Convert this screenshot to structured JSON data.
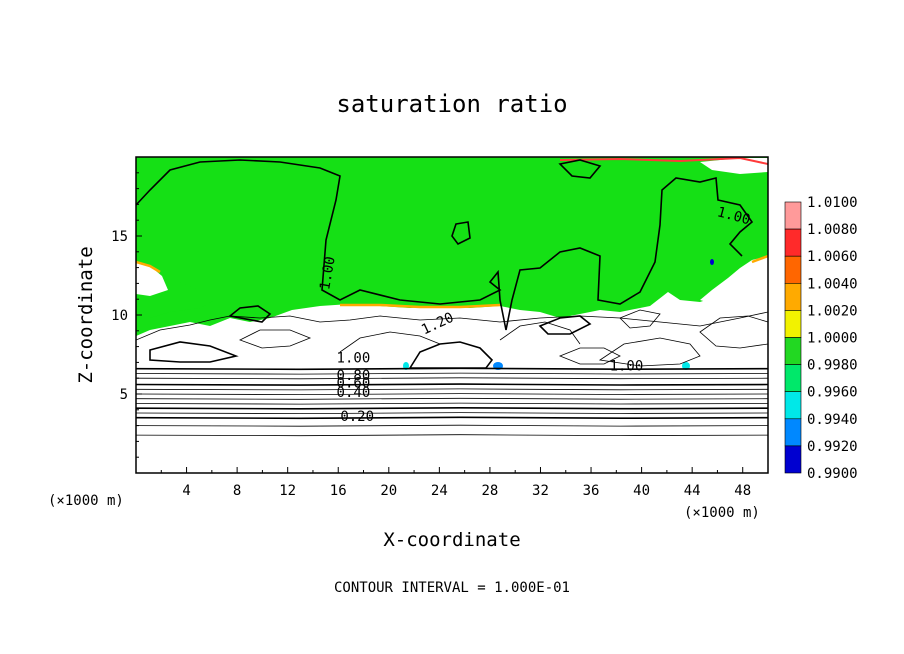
{
  "chart_data": {
    "type": "contour",
    "title": "saturation ratio",
    "xlabel": "X-coordinate",
    "ylabel": "Z-coordinate",
    "x_unit_left": "(×1000 m)",
    "x_unit_right": "(×1000 m)",
    "xlim": [
      0,
      50
    ],
    "ylim": [
      0,
      20
    ],
    "xticks": [
      "4",
      "8",
      "12",
      "16",
      "20",
      "24",
      "28",
      "32",
      "36",
      "40",
      "44",
      "48"
    ],
    "yticks": [
      "5",
      "10",
      "15"
    ],
    "footer": "CONTOUR INTERVAL = 1.000E-01",
    "contour_labels": [
      {
        "text": "1.00",
        "x": 15.5,
        "y": 12.6,
        "rotate": -80
      },
      {
        "text": "1.00",
        "x": 47.2,
        "y": 16.0,
        "rotate": 15
      },
      {
        "text": "1.20",
        "x": 24.0,
        "y": 9.2,
        "rotate": -25
      },
      {
        "text": "1.00",
        "x": 17.2,
        "y": 7.0,
        "rotate": 0
      },
      {
        "text": "0.80",
        "x": 17.2,
        "y": 5.9,
        "rotate": 0
      },
      {
        "text": "0.60",
        "x": 17.2,
        "y": 5.4,
        "rotate": 0
      },
      {
        "text": "0.40",
        "x": 17.2,
        "y": 4.8,
        "rotate": 0
      },
      {
        "text": "0.20",
        "x": 17.5,
        "y": 3.3,
        "rotate": 0
      },
      {
        "text": "1.00",
        "x": 38.8,
        "y": 6.5,
        "rotate": 0
      }
    ],
    "colorbar": {
      "levels": [
        "1.0100",
        "1.0080",
        "1.0060",
        "1.0040",
        "1.0020",
        "1.0000",
        "0.9980",
        "0.9960",
        "0.9940",
        "0.9920",
        "0.9900"
      ],
      "colors": [
        "#ff9a9a",
        "#ff2a2a",
        "#ff6600",
        "#ffaa00",
        "#f2f200",
        "#22d822",
        "#00e86a",
        "#00e8e8",
        "#0088ff",
        "#0000d0",
        "#5a00a0"
      ]
    },
    "field_colors": {
      "saturated": "#15e015",
      "subsaturated": "#ffffff",
      "supersat_edge": "#ffaa00",
      "supersat_core": "#ff3a3a"
    }
  }
}
